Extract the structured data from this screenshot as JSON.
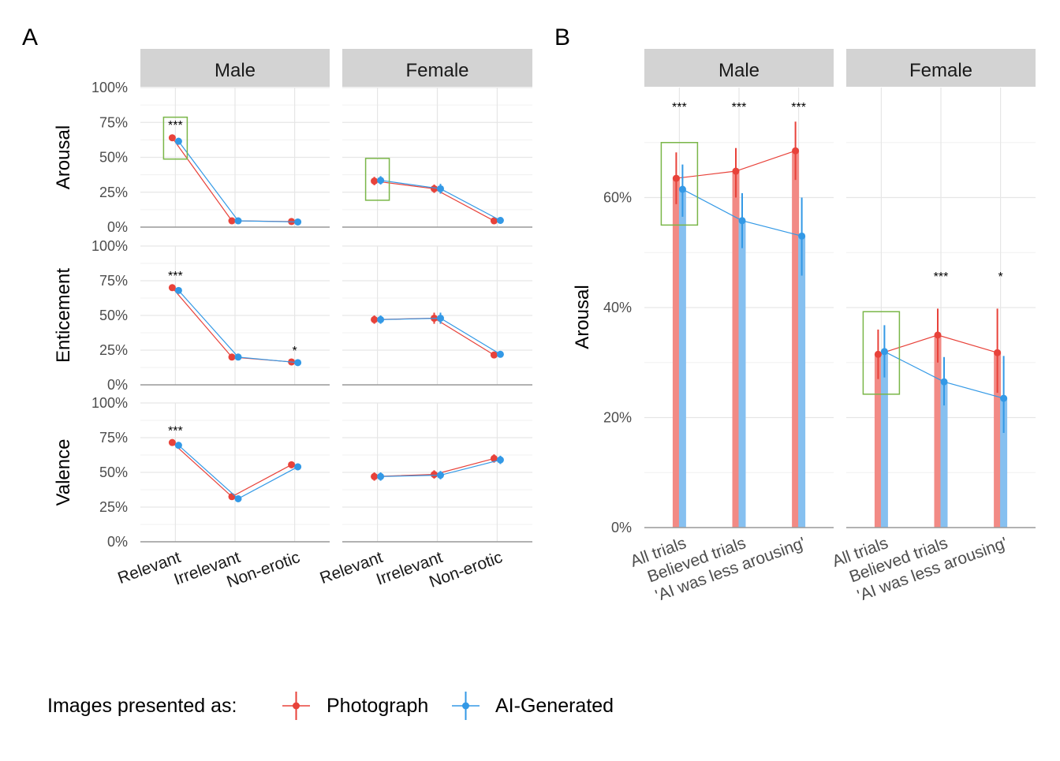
{
  "chart_data": [
    {
      "panel_tag": "A",
      "type": "line",
      "facets": [
        "Male",
        "Female"
      ],
      "categories": [
        "Relevant",
        "Irrelevant",
        "Non-erotic"
      ],
      "y_ticks": [
        "100%",
        "75%",
        "50%",
        "25%",
        "0%"
      ],
      "ylim": [
        0,
        1
      ],
      "rows": [
        {
          "measure": "Arousal",
          "panels": [
            {
              "facet": "Male",
              "photograph": [
                0.64,
                0.045,
                0.04
              ],
              "ai_generated": [
                0.615,
                0.045,
                0.037
              ],
              "photo_err": [
                0.02,
                0.01,
                0.01
              ],
              "ai_err": [
                0.025,
                0.01,
                0.01
              ],
              "sig": [
                "***",
                "",
                ""
              ],
              "highlight_index": 0
            },
            {
              "facet": "Female",
              "photograph": [
                0.33,
                0.275,
                0.045
              ],
              "ai_generated": [
                0.335,
                0.275,
                0.048
              ],
              "photo_err": [
                0.03,
                0.03,
                0.01
              ],
              "ai_err": [
                0.03,
                0.035,
                0.01
              ],
              "sig": [
                "",
                "",
                ""
              ],
              "highlight_index": 0
            }
          ]
        },
        {
          "measure": "Enticement",
          "panels": [
            {
              "facet": "Male",
              "photograph": [
                0.7,
                0.2,
                0.165
              ],
              "ai_generated": [
                0.68,
                0.2,
                0.16
              ],
              "photo_err": [
                0.015,
                0.015,
                0.01
              ],
              "ai_err": [
                0.02,
                0.015,
                0.01
              ],
              "sig": [
                "***",
                "",
                "*"
              ],
              "highlight_index": null
            },
            {
              "facet": "Female",
              "photograph": [
                0.47,
                0.48,
                0.215
              ],
              "ai_generated": [
                0.47,
                0.48,
                0.22
              ],
              "photo_err": [
                0.03,
                0.04,
                0.02
              ],
              "ai_err": [
                0.03,
                0.04,
                0.02
              ],
              "sig": [
                "",
                "",
                ""
              ],
              "highlight_index": null
            }
          ]
        },
        {
          "measure": "Valence",
          "panels": [
            {
              "facet": "Male",
              "photograph": [
                0.715,
                0.325,
                0.555
              ],
              "ai_generated": [
                0.695,
                0.31,
                0.54
              ],
              "photo_err": [
                0.015,
                0.02,
                0.025
              ],
              "ai_err": [
                0.02,
                0.02,
                0.025
              ],
              "sig": [
                "***",
                "",
                ""
              ],
              "highlight_index": null
            },
            {
              "facet": "Female",
              "photograph": [
                0.47,
                0.485,
                0.6
              ],
              "ai_generated": [
                0.47,
                0.48,
                0.59
              ],
              "photo_err": [
                0.03,
                0.03,
                0.03
              ],
              "ai_err": [
                0.03,
                0.03,
                0.03
              ],
              "sig": [
                "",
                "",
                ""
              ],
              "highlight_index": null
            }
          ]
        }
      ]
    },
    {
      "panel_tag": "B",
      "type": "bar",
      "ylabel": "Arousal",
      "facets": [
        "Male",
        "Female"
      ],
      "categories": [
        "All trials",
        "Believed trials",
        "'AI was less arousing'"
      ],
      "y_ticks": [
        "60%",
        "40%",
        "20%",
        "0%"
      ],
      "ylim": [
        0,
        0.8
      ],
      "panels": [
        {
          "facet": "Male",
          "photograph": [
            0.635,
            0.648,
            0.685
          ],
          "ai_generated": [
            0.615,
            0.558,
            0.53
          ],
          "photo_ci": [
            [
              0.588,
              0.682
            ],
            [
              0.6,
              0.69
            ],
            [
              0.632,
              0.738
            ]
          ],
          "ai_ci": [
            [
              0.565,
              0.66
            ],
            [
              0.508,
              0.608
            ],
            [
              0.458,
              0.6
            ]
          ],
          "sig": [
            "***",
            "***",
            "***"
          ],
          "highlight_index": 0
        },
        {
          "facet": "Female",
          "photograph": [
            0.315,
            0.35,
            0.318
          ],
          "ai_generated": [
            0.32,
            0.265,
            0.235
          ],
          "photo_ci": [
            [
              0.27,
              0.36
            ],
            [
              0.3,
              0.398
            ],
            [
              0.245,
              0.398
            ]
          ],
          "ai_ci": [
            [
              0.273,
              0.368
            ],
            [
              0.222,
              0.31
            ],
            [
              0.172,
              0.312
            ]
          ],
          "sig": [
            "",
            "***",
            "*"
          ],
          "highlight_index": 0
        }
      ]
    }
  ],
  "legend": {
    "title": "Images presented as:",
    "items": [
      {
        "label": "Photograph",
        "color": "#e8423a"
      },
      {
        "label": "AI-Generated",
        "color": "#3399e6"
      }
    ]
  },
  "colors": {
    "photograph": "#e8423a",
    "ai_generated": "#3399e6",
    "photograph_bar": "#f28a85",
    "ai_generated_bar": "#86c0f0",
    "highlight": "#7ab648",
    "strip": "#d3d3d3"
  }
}
